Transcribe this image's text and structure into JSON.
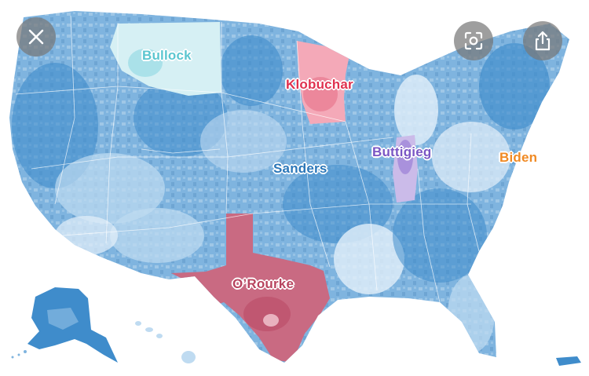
{
  "map": {
    "candidates": [
      {
        "key": "bullock",
        "label": "Bullock",
        "color": "#5bc6d0"
      },
      {
        "key": "klobuchar",
        "label": "Klobuchar",
        "color": "#e0314f"
      },
      {
        "key": "sanders",
        "label": "Sanders",
        "color": "#2a76b8"
      },
      {
        "key": "buttigieg",
        "label": "Buttigieg",
        "color": "#7a56c4"
      },
      {
        "key": "biden",
        "label": "Biden",
        "color": "#f08a24"
      },
      {
        "key": "orourke",
        "label": "O’Rourke",
        "color": "#b8445f"
      }
    ],
    "colors": {
      "sanders_dark": "#3f8ccb",
      "sanders_mid": "#7fb4df",
      "sanders_light": "#bfdbf1",
      "sanders_pale": "#e4f0fa",
      "orourke_fill": "#c96a82",
      "klobuchar_fill": "#f4a9b8",
      "bullock_fill": "#d6f0f4",
      "buttigieg_fill": "#cbbbe9",
      "background": "#ffffff"
    }
  },
  "controls": {
    "close": {
      "icon": "close-icon"
    },
    "lens": {
      "icon": "visual-search-icon"
    },
    "share": {
      "icon": "share-icon"
    }
  }
}
